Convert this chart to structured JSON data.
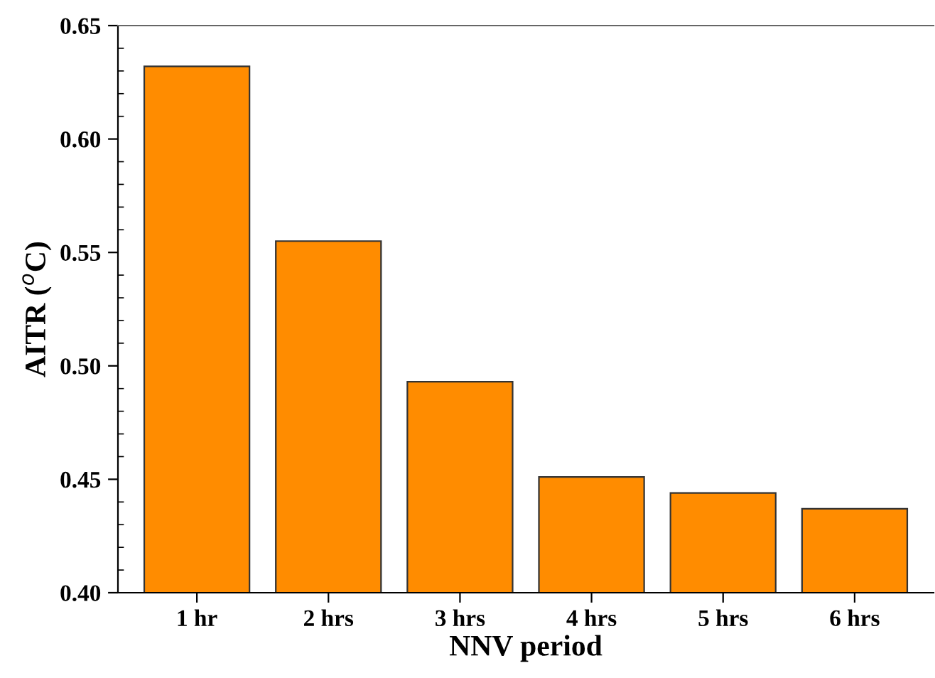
{
  "chart_data": {
    "type": "bar",
    "xlabel": "NNV period",
    "ylabel": "AITR ($^{o}$C)",
    "categories": [
      "1 hr",
      "2 hrs",
      "3 hrs",
      "4 hrs",
      "5 hrs",
      "6 hrs"
    ],
    "values": [
      0.632,
      0.555,
      0.493,
      0.451,
      0.444,
      0.437
    ],
    "color": "#ff8c00",
    "ylim": [
      0.4,
      0.65
    ],
    "yticks": [
      {
        "value": 0.4,
        "label": "0.40"
      },
      {
        "value": 0.45,
        "label": "0.45"
      },
      {
        "value": 0.5,
        "label": "0.50"
      },
      {
        "value": 0.55,
        "label": "0.55"
      },
      {
        "value": 0.6,
        "label": "0.60"
      },
      {
        "value": 0.65,
        "label": "0.65"
      }
    ],
    "grid": false
  }
}
